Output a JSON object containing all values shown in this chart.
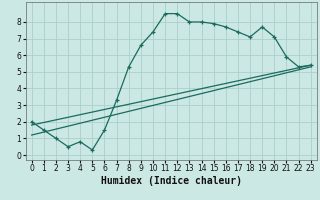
{
  "title": "",
  "xlabel": "Humidex (Indice chaleur)",
  "bg_color": "#cce8e4",
  "grid_color": "#aacfcb",
  "line_color": "#1a6b5e",
  "xlim": [
    -0.5,
    23.5
  ],
  "ylim": [
    -0.3,
    9.2
  ],
  "xticks": [
    0,
    1,
    2,
    3,
    4,
    5,
    6,
    7,
    8,
    9,
    10,
    11,
    12,
    13,
    14,
    15,
    16,
    17,
    18,
    19,
    20,
    21,
    22,
    23
  ],
  "yticks": [
    0,
    1,
    2,
    3,
    4,
    5,
    6,
    7,
    8
  ],
  "line1_x": [
    0,
    1,
    2,
    3,
    4,
    5,
    6,
    7,
    8,
    9,
    10,
    11,
    12,
    13,
    14,
    15,
    16,
    17,
    18,
    19,
    20,
    21,
    22,
    23
  ],
  "line1_y": [
    2.0,
    1.5,
    1.0,
    0.5,
    0.8,
    0.3,
    1.5,
    3.3,
    5.3,
    6.6,
    7.4,
    8.5,
    8.5,
    8.0,
    8.0,
    7.9,
    7.7,
    7.4,
    7.1,
    7.7,
    7.1,
    5.9,
    5.3,
    5.4
  ],
  "line2_x": [
    0,
    23
  ],
  "line2_y": [
    1.8,
    5.4
  ],
  "line3_x": [
    0,
    23
  ],
  "line3_y": [
    1.2,
    5.3
  ],
  "xlabel_fontsize": 7,
  "tick_fontsize": 5.5
}
